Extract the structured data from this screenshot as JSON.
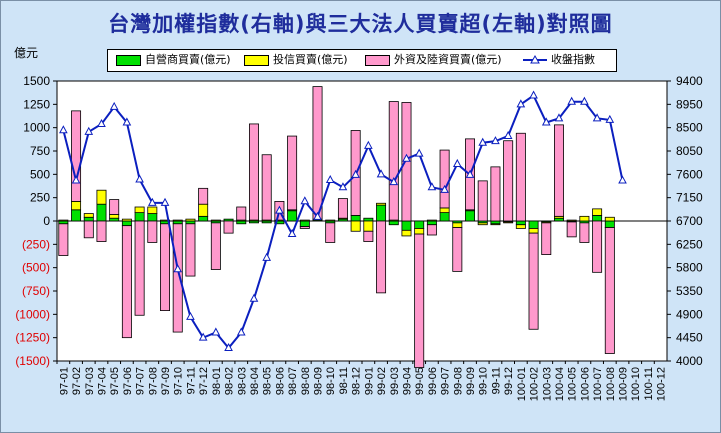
{
  "title": "台灣加權指數(右軸)與三大法人買賣超(左軸)對照圖",
  "left_unit": "億元",
  "colors": {
    "dealer": "#00e000",
    "trust": "#ffff00",
    "foreign": "#ff99cc",
    "index": "#0b1fbf",
    "negative_tick": "#e00000",
    "plot_bg": "#ffffff"
  },
  "legend": [
    {
      "name": "自營商買賣(億元)",
      "kind": "bar",
      "color": "#00e000"
    },
    {
      "name": "投信買賣(億元)",
      "kind": "bar",
      "color": "#ffff00"
    },
    {
      "name": "外資及陸資買賣(億元)",
      "kind": "bar",
      "color": "#ff99cc"
    },
    {
      "name": "收盤指數",
      "kind": "line",
      "color": "#0b1fbf"
    }
  ],
  "chart_data": {
    "type": "bar",
    "title": "台灣加權指數(右軸)與三大法人買賣超(左軸)對照圖",
    "categories": [
      "97-01",
      "97-02",
      "97-03",
      "97-04",
      "97-05",
      "97-06",
      "97-07",
      "97-08",
      "97-09",
      "97-10",
      "97-11",
      "97-12",
      "98-01",
      "98-02",
      "98-03",
      "98-04",
      "98-05",
      "98-06",
      "98-07",
      "98-08",
      "98-09",
      "98-10",
      "98-11",
      "98-12",
      "99-01",
      "99-02",
      "99-03",
      "99-04",
      "99-05",
      "99-06",
      "99-07",
      "99-08",
      "99-09",
      "99-10",
      "99-11",
      "99-12",
      "100-01",
      "100-02",
      "100-03",
      "100-04",
      "100-05",
      "100-06",
      "100-07",
      "100-08",
      "100-09",
      "100-10",
      "100-11",
      "100-12"
    ],
    "ylabel": "億元",
    "ylim": [
      -1500,
      1500
    ],
    "y_ticks": [
      1500,
      1250,
      1000,
      750,
      500,
      250,
      0,
      -250,
      -500,
      -750,
      -1000,
      -1250,
      -1500
    ],
    "y_tick_labels": [
      "1500",
      "1250",
      "1000",
      "750",
      "500",
      "250",
      "0",
      "(250)",
      "(500)",
      "(750)",
      "(1000)",
      "(1250)",
      "(1500)"
    ],
    "y2lim": [
      4000,
      9400
    ],
    "y2_ticks": [
      9400,
      8950,
      8500,
      8050,
      7600,
      7150,
      6700,
      6250,
      5800,
      5350,
      4900,
      4450,
      4000
    ],
    "y2_tick_labels": [
      "9400",
      "8950",
      "8500",
      "8050",
      "7600",
      "7150",
      "6700",
      "6250",
      "5800",
      "5350",
      "4900",
      "4450",
      "4000"
    ],
    "stacked": true,
    "grid": false,
    "legend_position": "top",
    "series": [
      {
        "name": "自營商買賣(億元)",
        "axis": "left",
        "kind": "bar",
        "values": [
          -30,
          120,
          40,
          180,
          30,
          -50,
          90,
          80,
          -30,
          -30,
          -30,
          50,
          -20,
          20,
          -30,
          -20,
          -20,
          -30,
          110,
          -60,
          10,
          -20,
          20,
          60,
          30,
          170,
          -40,
          -100,
          -80,
          -40,
          90,
          -20,
          110,
          -20,
          -30,
          -10,
          -40,
          -80,
          -10,
          30,
          -10,
          -20,
          60,
          -70,
          null,
          null,
          null,
          null
        ]
      },
      {
        "name": "投信買賣(億元)",
        "axis": "left",
        "kind": "bar",
        "values": [
          10,
          90,
          40,
          150,
          40,
          20,
          60,
          70,
          10,
          10,
          20,
          130,
          10,
          0,
          10,
          10,
          10,
          10,
          10,
          10,
          10,
          10,
          10,
          -110,
          -110,
          20,
          10,
          -60,
          -60,
          10,
          50,
          -50,
          10,
          -20,
          -10,
          -10,
          -40,
          -50,
          -10,
          20,
          10,
          50,
          70,
          40,
          null,
          null,
          null,
          null
        ]
      },
      {
        "name": "外資及陸資買賣(億元)",
        "axis": "left",
        "kind": "bar",
        "values": [
          -340,
          970,
          -180,
          -220,
          160,
          -1200,
          -1010,
          -230,
          -930,
          -1160,
          -560,
          170,
          -500,
          -130,
          140,
          1030,
          700,
          200,
          790,
          -20,
          1420,
          -210,
          210,
          910,
          -110,
          -770,
          1270,
          1270,
          -1430,
          -110,
          620,
          -470,
          760,
          430,
          580,
          860,
          940,
          -1030,
          -340,
          980,
          -160,
          -210,
          -550,
          -1350,
          null,
          null,
          null,
          null
        ]
      },
      {
        "name": "收盤指數",
        "axis": "right",
        "kind": "line",
        "values": [
          8450,
          7480,
          8420,
          8570,
          8900,
          8600,
          7500,
          7050,
          7050,
          5770,
          4850,
          4450,
          4550,
          4250,
          4550,
          5200,
          5990,
          6900,
          6450,
          7080,
          6780,
          7490,
          7350,
          7590,
          8150,
          7600,
          7450,
          7900,
          8000,
          7350,
          7300,
          7800,
          7590,
          8210,
          8240,
          8340,
          8950,
          9120,
          8600,
          8680,
          9000,
          9000,
          8680,
          8650,
          7480,
          null,
          null,
          null
        ]
      }
    ]
  }
}
